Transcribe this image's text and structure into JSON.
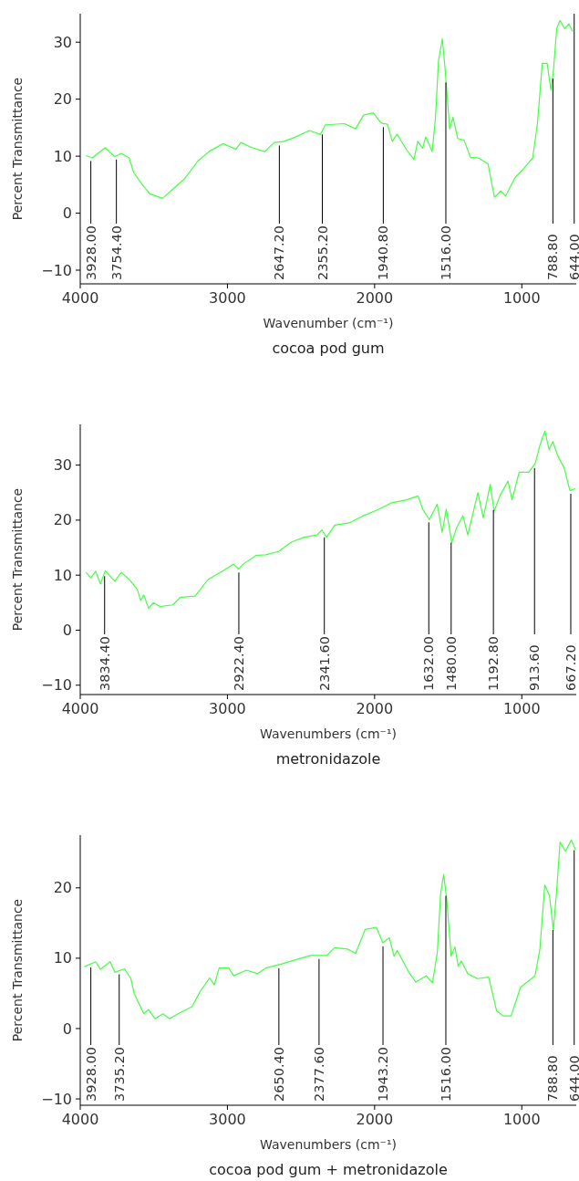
{
  "chart_data": [
    {
      "type": "line",
      "title": "cocoa pod gum",
      "xlabel": "Wavenumber (cm⁻¹)",
      "ylabel": "Percent Transmittance",
      "xlim": [
        4000,
        630
      ],
      "ylim": [
        -12.4,
        35
      ],
      "xticks": [
        4000,
        3000,
        2000,
        1000
      ],
      "yticks": [
        -10,
        0,
        10,
        20,
        30
      ],
      "series": [
        {
          "color": "#44ff44",
          "x": [
            3961,
            3918,
            3831,
            3766,
            3722,
            3668,
            3636,
            3582,
            3527,
            3441,
            3376,
            3289,
            3202,
            3126,
            3029,
            2942,
            2909,
            2834,
            2747,
            2682,
            2617,
            2552,
            2443,
            2368,
            2335,
            2205,
            2129,
            2075,
            2010,
            1955,
            1913,
            1880,
            1848,
            1783,
            1733,
            1707,
            1674,
            1652,
            1609,
            1587,
            1566,
            1540,
            1522,
            1490,
            1468,
            1435,
            1392,
            1349,
            1295,
            1229,
            1186,
            1143,
            1110,
            1045,
            991,
            926,
            893,
            861,
            828,
            802,
            785,
            763,
            741,
            709,
            680,
            655
          ],
          "values": [
            10.1,
            9.7,
            11.5,
            9.9,
            10.5,
            9.7,
            7.1,
            5.1,
            3.4,
            2.6,
            4.1,
            6.1,
            9.1,
            10.8,
            12.2,
            11.2,
            12.4,
            11.5,
            10.8,
            12.4,
            12.6,
            13.2,
            14.5,
            13.8,
            15.5,
            15.7,
            14.8,
            17.2,
            17.6,
            15.8,
            15.6,
            12.6,
            13.9,
            11.1,
            9.4,
            12.6,
            11.4,
            13.4,
            10.8,
            16.5,
            26.7,
            30.6,
            25.6,
            14.8,
            16.8,
            13.1,
            12.8,
            9.8,
            9.7,
            8.6,
            2.8,
            3.9,
            3.0,
            6.3,
            7.7,
            9.7,
            15.9,
            26.3,
            26.3,
            21.6,
            25.0,
            32.4,
            33.8,
            32.4,
            33.2,
            31.9
          ]
        }
      ],
      "ref_lines": [
        {
          "axis": "x",
          "value": 3928,
          "label": "3928.00"
        },
        {
          "axis": "x",
          "value": 3754.4,
          "label": "3754.40"
        },
        {
          "axis": "x",
          "value": 2647.2,
          "label": "2647.20"
        },
        {
          "axis": "x",
          "value": 2355.2,
          "label": "2355.20"
        },
        {
          "axis": "x",
          "value": 1940.8,
          "label": "1940.80"
        },
        {
          "axis": "x",
          "value": 1516,
          "label": "1516.00"
        },
        {
          "axis": "x",
          "value": 788.8,
          "label": "788.80"
        },
        {
          "axis": "x",
          "value": 644,
          "label": "644.00"
        }
      ]
    },
    {
      "type": "line",
      "title": "metronidazole",
      "xlabel": "Wavenumbers (cm⁻¹)",
      "ylabel": "Percent Transmittance",
      "xlim": [
        4000,
        630
      ],
      "ylim": [
        -11.7,
        37.4
      ],
      "xticks": [
        4000,
        3000,
        2000,
        1000
      ],
      "yticks": [
        -10,
        0,
        10,
        20,
        30
      ],
      "series": [
        {
          "color": "#44ff44",
          "x": [
            3961,
            3928,
            3895,
            3863,
            3830,
            3765,
            3721,
            3666,
            3612,
            3590,
            3568,
            3536,
            3503,
            3459,
            3372,
            3318,
            3220,
            3132,
            3023,
            2958,
            2924,
            2893,
            2805,
            2740,
            2652,
            2566,
            2478,
            2391,
            2358,
            2326,
            2271,
            2173,
            2086,
            1977,
            1890,
            1781,
            1705,
            1672,
            1628,
            1575,
            1541,
            1513,
            1476,
            1443,
            1400,
            1367,
            1298,
            1262,
            1214,
            1188,
            1149,
            1094,
            1066,
            1018,
            953,
            909,
            876,
            843,
            815,
            789,
            756,
            712,
            673,
            636
          ],
          "values": [
            10.5,
            9.5,
            10.7,
            8.4,
            10.8,
            8.9,
            10.5,
            9.2,
            7.4,
            5.4,
            6.4,
            4.0,
            5.0,
            4.3,
            4.6,
            6.0,
            6.2,
            9.2,
            10.9,
            12.0,
            11.1,
            12.0,
            13.6,
            13.7,
            14.3,
            16.0,
            16.9,
            17.3,
            18.2,
            16.9,
            19.1,
            19.5,
            20.7,
            21.9,
            23.1,
            23.7,
            24.4,
            21.9,
            20.1,
            22.9,
            17.8,
            22.0,
            15.9,
            18.6,
            20.8,
            17.3,
            25.0,
            20.4,
            26.5,
            21.6,
            24.4,
            27.1,
            23.7,
            28.7,
            28.7,
            30.3,
            33.7,
            36.2,
            32.8,
            34.3,
            31.7,
            29.5,
            25.4,
            25.7
          ]
        }
      ],
      "ref_lines": [
        {
          "axis": "x",
          "value": 3834.4,
          "label": "3834.40"
        },
        {
          "axis": "x",
          "value": 2922.4,
          "label": "2922.40"
        },
        {
          "axis": "x",
          "value": 2341.6,
          "label": "2341.60"
        },
        {
          "axis": "x",
          "value": 1632,
          "label": "1632.00"
        },
        {
          "axis": "x",
          "value": 1480,
          "label": "1480.00"
        },
        {
          "axis": "x",
          "value": 1192.8,
          "label": "1192.80"
        },
        {
          "axis": "x",
          "value": 913.6,
          "label": "913.60"
        },
        {
          "axis": "x",
          "value": 667.2,
          "label": "667.20"
        }
      ]
    },
    {
      "type": "line",
      "title": "cocoa pod gum + metronidazole",
      "xlabel": "Wavenumbers (cm⁻¹)",
      "ylabel": "Percent Transmittance",
      "xlim": [
        4000,
        630
      ],
      "ylim": [
        -10.9,
        27.5
      ],
      "xticks": [
        4000,
        3000,
        2000,
        1000
      ],
      "yticks": [
        -10,
        0,
        10,
        20
      ],
      "series": [
        {
          "color": "#44ff44",
          "x": [
            3972,
            3895,
            3863,
            3797,
            3765,
            3699,
            3656,
            3634,
            3568,
            3536,
            3492,
            3438,
            3394,
            3328,
            3241,
            3187,
            3121,
            3089,
            3056,
            2991,
            2958,
            2871,
            2794,
            2740,
            2631,
            2500,
            2435,
            2326,
            2271,
            2184,
            2129,
            2064,
            1988,
            1944,
            1900,
            1868,
            1846,
            1770,
            1720,
            1650,
            1607,
            1574,
            1552,
            1531,
            1509,
            1480,
            1454,
            1432,
            1411,
            1367,
            1302,
            1225,
            1171,
            1127,
            1073,
            1008,
            910,
            877,
            844,
            812,
            786,
            764,
            740,
            703,
            664,
            634
          ],
          "values": [
            8.8,
            9.5,
            8.4,
            9.5,
            8.0,
            8.5,
            7.1,
            5.0,
            2.1,
            2.7,
            1.4,
            2.1,
            1.4,
            2.2,
            3.1,
            5.2,
            7.2,
            6.2,
            8.6,
            8.6,
            7.5,
            8.3,
            7.8,
            8.6,
            9.2,
            10.0,
            10.4,
            10.4,
            11.5,
            11.3,
            10.7,
            14.1,
            14.4,
            12.2,
            12.9,
            10.3,
            11.1,
            8.1,
            6.6,
            7.5,
            6.5,
            10.8,
            19.1,
            21.9,
            18.2,
            10.3,
            11.6,
            8.9,
            9.6,
            7.8,
            7.1,
            7.3,
            2.5,
            1.8,
            1.8,
            5.9,
            7.5,
            11.3,
            20.4,
            18.9,
            14.0,
            19.4,
            26.5,
            25.2,
            26.8,
            25.4
          ]
        }
      ],
      "ref_lines": [
        {
          "axis": "x",
          "value": 3928,
          "label": "3928.00"
        },
        {
          "axis": "x",
          "value": 3735.2,
          "label": "3735.20"
        },
        {
          "axis": "x",
          "value": 2650.4,
          "label": "2650.40"
        },
        {
          "axis": "x",
          "value": 2377.6,
          "label": "2377.60"
        },
        {
          "axis": "x",
          "value": 1943.2,
          "label": "1943.20"
        },
        {
          "axis": "x",
          "value": 1516,
          "label": "1516.00"
        },
        {
          "axis": "x",
          "value": 788.8,
          "label": "788.80"
        },
        {
          "axis": "x",
          "value": 644,
          "label": "644.00"
        }
      ]
    }
  ]
}
